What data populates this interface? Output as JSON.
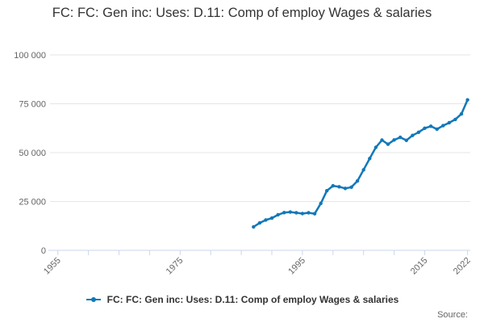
{
  "chart": {
    "title": "FC: FC: Gen inc: Uses: D.11: Comp of employ Wages & salaries",
    "legend": {
      "label": "FC: FC: Gen inc: Uses: D.11: Comp of employ Wages & salaries"
    },
    "source_label": "Source:"
  },
  "colors": {
    "series": "#1178b8",
    "grid": "#e6e6e6",
    "axis": "#ccd6eb",
    "title_text": "#333333",
    "tick_text": "#666666",
    "legend_text": "#333333",
    "source_text": "#666666",
    "background": "#ffffff"
  },
  "chart_data": {
    "type": "line",
    "title": "FC: FC: Gen inc: Uses: D.11: Comp of employ Wages & salaries",
    "xlabel": "",
    "ylabel": "",
    "grid": true,
    "legend_position": "bottom",
    "marker": "circle",
    "xlim": [
      1953.72,
      2022.45
    ],
    "ylim": [
      0,
      100000
    ],
    "x": [
      1987,
      1988,
      1989,
      1990,
      1991,
      1992,
      1993,
      1994,
      1995,
      1996,
      1997,
      1998,
      1999,
      2000,
      2001,
      2002,
      2003,
      2004,
      2005,
      2006,
      2007,
      2008,
      2009,
      2010,
      2011,
      2012,
      2013,
      2014,
      2015,
      2016,
      2017,
      2018,
      2019,
      2020,
      2021,
      2022
    ],
    "series": [
      {
        "name": "FC: FC: Gen inc: Uses: D.11: Comp of employ Wages & salaries",
        "values": [
          12000,
          14000,
          15500,
          16500,
          18200,
          19300,
          19600,
          19200,
          18800,
          19200,
          18700,
          24000,
          30500,
          33000,
          32500,
          31700,
          32300,
          35500,
          41200,
          47000,
          52700,
          56400,
          54300,
          56500,
          57800,
          56300,
          58800,
          60400,
          62500,
          63500,
          62000,
          63800,
          65300,
          67000,
          69800,
          77000
        ]
      }
    ],
    "y_ticks": [
      {
        "value": 0,
        "label": "0"
      },
      {
        "value": 25000,
        "label": "25 000"
      },
      {
        "value": 50000,
        "label": "50 000"
      },
      {
        "value": 75000,
        "label": "75 000"
      },
      {
        "value": 100000,
        "label": "100 000"
      }
    ],
    "x_ticks": [
      {
        "value": 1955,
        "label": "1955"
      },
      {
        "value": 1960,
        "label": ""
      },
      {
        "value": 1965,
        "label": ""
      },
      {
        "value": 1970,
        "label": ""
      },
      {
        "value": 1975,
        "label": "1975"
      },
      {
        "value": 1980,
        "label": ""
      },
      {
        "value": 1985,
        "label": ""
      },
      {
        "value": 1990,
        "label": ""
      },
      {
        "value": 1995,
        "label": "1995"
      },
      {
        "value": 2000,
        "label": ""
      },
      {
        "value": 2005,
        "label": ""
      },
      {
        "value": 2010,
        "label": ""
      },
      {
        "value": 2015,
        "label": "2015"
      },
      {
        "value": 2022,
        "label": "2022"
      }
    ]
  }
}
